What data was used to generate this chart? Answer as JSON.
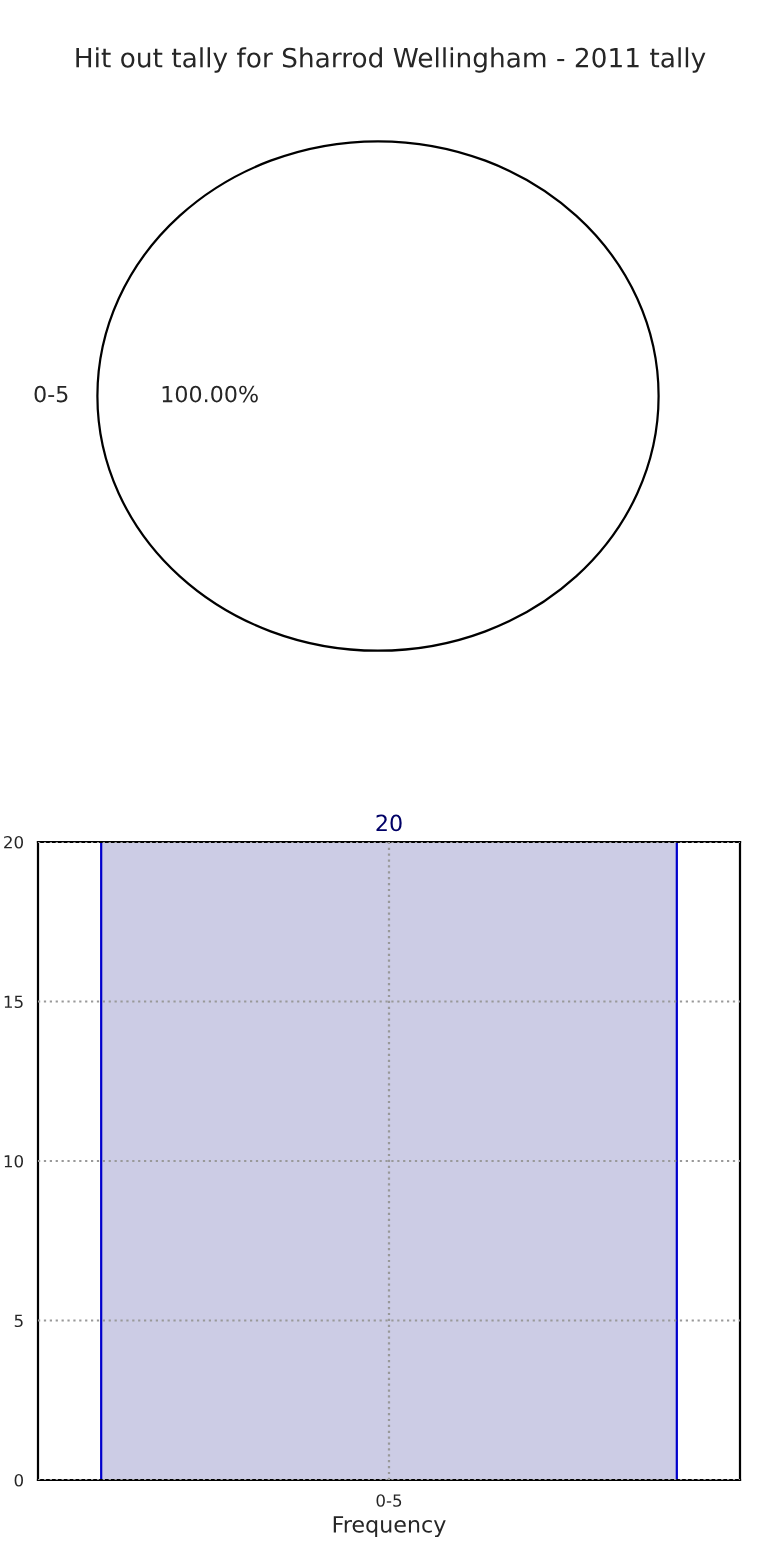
{
  "chart_data": [
    {
      "type": "pie",
      "title": "Hit out tally for Sharrod Wellingham - 2011 tally",
      "categories": [
        "0-5"
      ],
      "values": [
        100
      ],
      "value_labels": [
        "100.00%"
      ],
      "colors": [
        "#ffffff"
      ]
    },
    {
      "type": "bar",
      "xlabel": "Frequency",
      "categories": [
        "0-5"
      ],
      "values": [
        20
      ],
      "color": "#ccccE5",
      "data_labels": true,
      "ylim": [
        0,
        20
      ],
      "yticks": [
        0,
        5,
        10,
        15,
        20
      ],
      "grid": true
    }
  ]
}
